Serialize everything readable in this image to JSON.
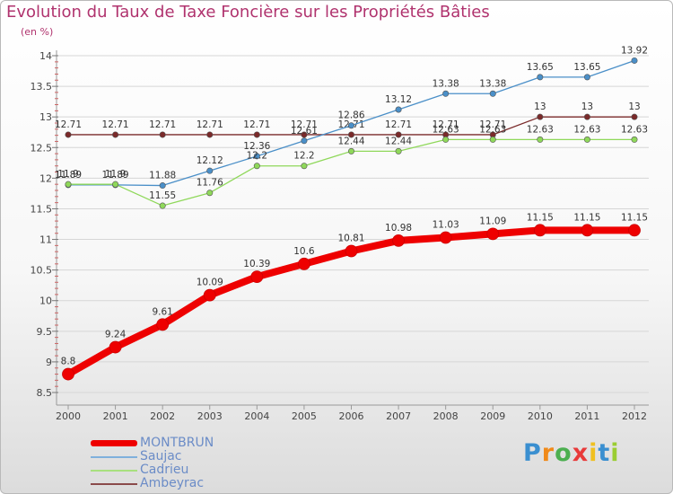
{
  "chart_data": {
    "type": "line",
    "title": "Evolution du Taux de Taxe Foncière sur les Propriétés Bâties",
    "ylabel": "(en %)",
    "xlabel": "",
    "ylim": [
      8.5,
      14
    ],
    "yticks": [
      "8.5",
      "9",
      "9.5",
      "10",
      "10.5",
      "11",
      "11.5",
      "12",
      "12.5",
      "13",
      "13.5",
      "14"
    ],
    "categories": [
      "2000",
      "2001",
      "2002",
      "2003",
      "2004",
      "2005",
      "2006",
      "2007",
      "2008",
      "2009",
      "2010",
      "2011",
      "2012"
    ],
    "series": [
      {
        "name": "Ambeyrac",
        "color": "#7a2a2a",
        "values": [
          12.71,
          12.71,
          12.71,
          12.71,
          12.71,
          12.71,
          12.71,
          12.71,
          12.71,
          12.71,
          13,
          13,
          13
        ],
        "labels": [
          "12.71",
          "12.71",
          "12.71",
          "12.71",
          "12.71",
          "12.71",
          "12.71",
          "12.71",
          "12.71",
          "12.71",
          "13",
          "13",
          "13"
        ]
      },
      {
        "name": "Saujac",
        "color": "#4a8fc8",
        "values": [
          11.89,
          11.89,
          11.88,
          12.12,
          12.36,
          12.61,
          12.86,
          13.12,
          13.38,
          13.38,
          13.65,
          13.65,
          13.92
        ],
        "labels": [
          "11.89",
          "11.89",
          "11.88",
          "12.12",
          "12.36",
          "12.61",
          "12.86",
          "13.12",
          "13.38",
          "13.38",
          "13.65",
          "13.65",
          "13.92"
        ]
      },
      {
        "name": "Cadrieu",
        "color": "#8fd85a",
        "values": [
          11.9,
          11.9,
          11.55,
          11.76,
          12.2,
          12.2,
          12.44,
          12.44,
          12.63,
          12.63,
          12.63,
          12.63,
          12.63
        ],
        "labels": [
          "11.9",
          "11.9",
          "11.55",
          "11.76",
          "12.2",
          "12.2",
          "12.44",
          "12.44",
          "12.63",
          "12.63",
          "12.63",
          "12.63",
          "12.63"
        ]
      },
      {
        "name": "MONTBRUN",
        "color": "#ee0000",
        "values": [
          8.8,
          9.24,
          9.61,
          10.09,
          10.39,
          10.6,
          10.81,
          10.98,
          11.03,
          11.09,
          11.15,
          11.15,
          11.15
        ],
        "labels": [
          "8.8",
          "9.24",
          "9.61",
          "10.09",
          "10.39",
          "10.6",
          "10.81",
          "10.98",
          "11.03",
          "11.09",
          "11.15",
          "11.15",
          "11.15"
        ]
      }
    ],
    "legend": [
      {
        "name": "MONTBRUN",
        "color": "#ee0000",
        "thick": true
      },
      {
        "name": "Saujac",
        "color": "#7fb0dc",
        "thick": false
      },
      {
        "name": "Cadrieu",
        "color": "#a8e07f",
        "thick": false
      },
      {
        "name": "Ambeyrac",
        "color": "#8a4a4a",
        "thick": false
      }
    ]
  },
  "logo": {
    "letters": [
      "P",
      "r",
      "o",
      "x",
      "i",
      "t",
      "i"
    ],
    "colors": [
      "#3a8fd0",
      "#f08a1a",
      "#4caf50",
      "#e83a3a",
      "#f0c020",
      "#3a8fd0",
      "#9acd32"
    ]
  }
}
